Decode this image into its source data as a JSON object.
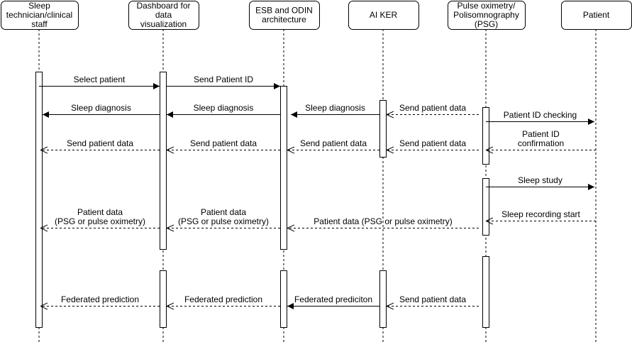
{
  "participants": [
    {
      "id": "staff",
      "lines": [
        "Sleep",
        "technician/clinical",
        "staff"
      ]
    },
    {
      "id": "dashboard",
      "lines": [
        "Dashboard for",
        "data",
        "visualization"
      ]
    },
    {
      "id": "esb",
      "lines": [
        "ESB and ODIN",
        "architecture"
      ]
    },
    {
      "id": "aiker",
      "lines": [
        "AI KER"
      ]
    },
    {
      "id": "psg",
      "lines": [
        "Pulse oximetry/",
        "Polisomnography",
        "(PSG)"
      ]
    },
    {
      "id": "patient",
      "lines": [
        "Patient"
      ]
    }
  ],
  "messages": [
    {
      "from": "staff",
      "to": "dashboard",
      "lines": [
        "Select patient"
      ],
      "style": "solid"
    },
    {
      "from": "dashboard",
      "to": "esb",
      "lines": [
        "Send Patient ID"
      ],
      "style": "solid"
    },
    {
      "from": "psg",
      "to": "aiker",
      "lines": [
        "Send patient data"
      ],
      "style": "dashed"
    },
    {
      "from": "aiker",
      "to": "esb",
      "lines": [
        "Sleep diagnosis"
      ],
      "style": "solid"
    },
    {
      "from": "esb",
      "to": "dashboard",
      "lines": [
        "Sleep diagnosis"
      ],
      "style": "solid"
    },
    {
      "from": "dashboard",
      "to": "staff",
      "lines": [
        "Sleep diagnosis"
      ],
      "style": "solid"
    },
    {
      "from": "psg",
      "to": "patient",
      "lines": [
        "Patient ID checking"
      ],
      "style": "solid"
    },
    {
      "from": "patient",
      "to": "psg",
      "lines": [
        "Patient ID",
        "confirmation"
      ],
      "style": "dashed"
    },
    {
      "from": "psg",
      "to": "aiker",
      "lines": [
        "Send patient data"
      ],
      "style": "dashed"
    },
    {
      "from": "aiker",
      "to": "esb",
      "lines": [
        "Send patient data"
      ],
      "style": "dashed"
    },
    {
      "from": "esb",
      "to": "dashboard",
      "lines": [
        "Send patient data"
      ],
      "style": "dashed"
    },
    {
      "from": "dashboard",
      "to": "staff",
      "lines": [
        "Send patient data"
      ],
      "style": "dashed"
    },
    {
      "from": "psg",
      "to": "patient",
      "lines": [
        "Sleep study"
      ],
      "style": "solid"
    },
    {
      "from": "patient",
      "to": "psg",
      "lines": [
        "Sleep recording start"
      ],
      "style": "dashed"
    },
    {
      "from": "psg",
      "to": "esb",
      "lines": [
        "Patient data (PSG or pulse oximetry)"
      ],
      "style": "dashed"
    },
    {
      "from": "esb",
      "to": "dashboard",
      "lines": [
        "Patient data",
        "(PSG or pulse oximetry)"
      ],
      "style": "dashed"
    },
    {
      "from": "dashboard",
      "to": "staff",
      "lines": [
        "Patient data",
        "(PSG or pulse oximetry)"
      ],
      "style": "dashed"
    },
    {
      "from": "psg",
      "to": "aiker",
      "lines": [
        "Send patient data"
      ],
      "style": "dashed"
    },
    {
      "from": "aiker",
      "to": "esb",
      "lines": [
        "Federated prediciton"
      ],
      "style": "solid"
    },
    {
      "from": "esb",
      "to": "dashboard",
      "lines": [
        "Federated prediction"
      ],
      "style": "dashed"
    },
    {
      "from": "dashboard",
      "to": "staff",
      "lines": [
        "Federated prediction"
      ],
      "style": "dashed"
    }
  ]
}
